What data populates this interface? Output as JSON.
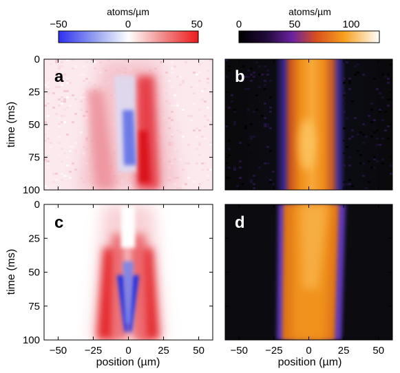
{
  "chart_data": [
    {
      "type": "heatmap",
      "panel_label": "a",
      "description_source": "measured",
      "colormap": "diverging blue-white-red",
      "x": [
        -50,
        0,
        50
      ],
      "y": [
        0,
        25,
        50,
        75,
        100
      ],
      "xlim": [
        -60,
        60
      ],
      "ylim": [
        0,
        100
      ],
      "ylabel": "time (ms)",
      "colorbar": {
        "title": "atoms/µm",
        "ticks": [
          "−50",
          "0",
          "50"
        ],
        "range": [
          -50,
          50
        ]
      }
    },
    {
      "type": "heatmap",
      "panel_label": "b",
      "colormap": "black-purple-orange-white",
      "xlim": [
        -60,
        60
      ],
      "ylim": [
        0,
        100
      ],
      "colorbar": {
        "title": "atoms/µm",
        "ticks": [
          "0",
          "50",
          "100"
        ],
        "range": [
          0,
          125
        ]
      }
    },
    {
      "type": "heatmap",
      "panel_label": "c",
      "colormap": "diverging blue-white-red",
      "xlim": [
        -60,
        60
      ],
      "ylim": [
        0,
        100
      ],
      "xlabel": "position (µm)",
      "ylabel": "time (ms)"
    },
    {
      "type": "heatmap",
      "panel_label": "d",
      "colormap": "black-purple-orange-white",
      "xlim": [
        -60,
        60
      ],
      "ylim": [
        0,
        100
      ],
      "xlabel": "position (µm)"
    }
  ],
  "labels": {
    "cb_left_title": "atoms/µm",
    "cb_right_title": "atoms/µm",
    "ylabel_top": "time (ms)",
    "ylabel_bottom": "time (ms)",
    "xlabel_left": "position (µm)",
    "xlabel_right": "position (µm)",
    "panel_a": "a",
    "panel_b": "b",
    "panel_c": "c",
    "panel_d": "d"
  },
  "ticks": {
    "cb_left": [
      "−50",
      "0",
      "50"
    ],
    "cb_right": [
      "0",
      "50",
      "100"
    ],
    "y": [
      "0",
      "25",
      "50",
      "75",
      "100"
    ],
    "x": [
      "−50",
      "−25",
      "0",
      "25",
      "50"
    ]
  }
}
